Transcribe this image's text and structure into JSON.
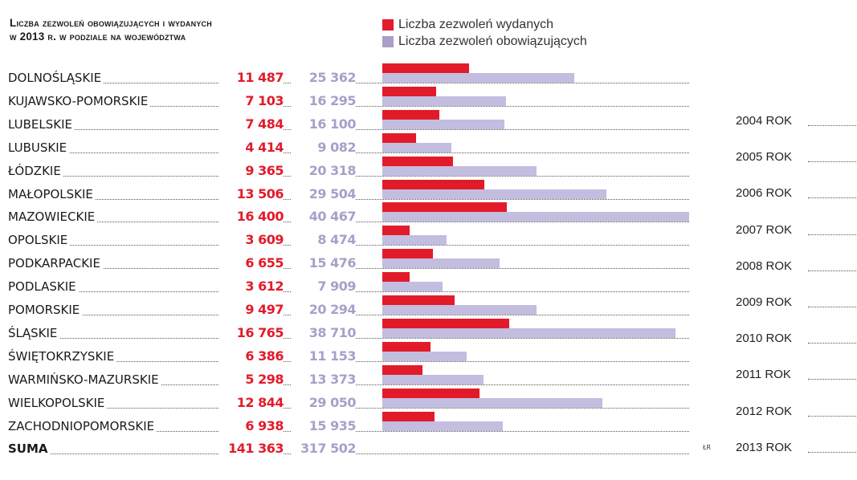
{
  "chart_data": {
    "type": "bar",
    "orientation": "horizontal",
    "title": [
      "Liczba zezwoleń obowiązujących i wydanych",
      "w 2013 r. w podziale na województwa"
    ],
    "categories": [
      "DOLNOŚLĄSKIE",
      "KUJAWSKO-POMORSKIE",
      "LUBELSKIE",
      "LUBUSKIE",
      "ŁÓDZKIE",
      "MAŁOPOLSKIE",
      "MAZOWIECKIE",
      "OPOLSKIE",
      "PODKARPACKIE",
      "PODLASKIE",
      "POMORSKIE",
      "ŚLĄSKIE",
      "ŚWIĘTOKRZYSKIE",
      "WARMIŃSKO-MAZURSKIE",
      "WIELKOPOLSKIE",
      "ZACHODNIOPOMORSKIE"
    ],
    "series": [
      {
        "name": "Liczba zezwoleń wydanych",
        "color": "#e21b2b",
        "values": [
          11487,
          7103,
          7484,
          4414,
          9365,
          13506,
          16400,
          3609,
          6655,
          3612,
          9497,
          16765,
          6386,
          5298,
          12844,
          6938
        ],
        "labels": [
          "11 487",
          "7 103",
          "7 484",
          "4 414",
          "9 365",
          "13 506",
          "16 400",
          "3 609",
          "6 655",
          "3 612",
          "9 497",
          "16 765",
          "6 386",
          "5 298",
          "12 844",
          "6 938"
        ]
      },
      {
        "name": "Liczba zezwoleń obowiązujących",
        "color": "#c3bde0",
        "values": [
          25362,
          16295,
          16100,
          9082,
          20318,
          29504,
          40467,
          8474,
          15476,
          7909,
          20294,
          38710,
          11153,
          13373,
          29050,
          15935
        ],
        "labels": [
          "25 362",
          "16 295",
          "16 100",
          "9 082",
          "20 318",
          "29 504",
          "40 467",
          "8 474",
          "15 476",
          "7 909",
          "20 294",
          "38 710",
          "11 153",
          "13 373",
          "29 050",
          "15 935"
        ]
      }
    ],
    "total": {
      "label": "SUMA",
      "values": [
        "141 363",
        "317 502"
      ]
    },
    "xlim": [
      0,
      40467
    ],
    "grid": false,
    "legend": "top"
  },
  "years": [
    "2004 ROK",
    "2005 ROK",
    "2006 ROK",
    "2007 ROK",
    "2008 ROK",
    "2009 ROK",
    "2010 ROK",
    "2011 ROK",
    "2012 ROK",
    "2013 ROK"
  ],
  "credit": "ŁR",
  "legend_colors": {
    "issued": "#e21b2b",
    "valid": "#a99fc9"
  }
}
